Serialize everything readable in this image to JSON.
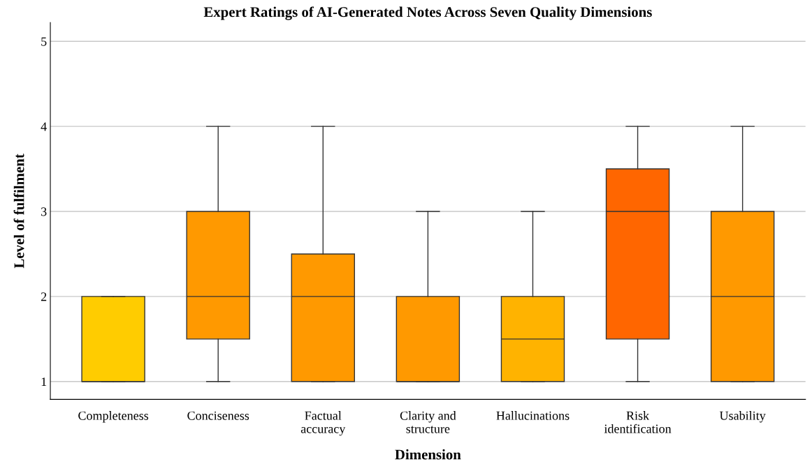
{
  "chart_data": {
    "type": "box",
    "title": "Expert Ratings of AI-Generated Notes Across Seven Quality Dimensions",
    "xlabel": "Dimension",
    "ylabel": "Level of fulfilment",
    "categories": [
      "Completeness",
      "Conciseness",
      "Factual\naccuracy",
      "Clarity and\nstructure",
      "Hallucinations",
      "Risk\nidentification",
      "Usability"
    ],
    "boxes": [
      {
        "low": 1,
        "q1": 1,
        "median": 1,
        "q3": 2,
        "high": 2
      },
      {
        "low": 1,
        "q1": 1.5,
        "median": 2,
        "q3": 3,
        "high": 4
      },
      {
        "low": 1,
        "q1": 1,
        "median": 2,
        "q3": 2.5,
        "high": 4
      },
      {
        "low": 1,
        "q1": 1,
        "median": 1,
        "q3": 2,
        "high": 3
      },
      {
        "low": 1,
        "q1": 1,
        "median": 1.5,
        "q3": 2,
        "high": 3
      },
      {
        "low": 1,
        "q1": 1.5,
        "median": 3,
        "q3": 3.5,
        "high": 4
      },
      {
        "low": 1,
        "q1": 1,
        "median": 2,
        "q3": 3,
        "high": 4
      }
    ],
    "colors": [
      "#ffcc00",
      "#ff9900",
      "#ff9900",
      "#ff9900",
      "#ffb300",
      "#ff6600",
      "#ff9900"
    ],
    "ylim": [
      0.79,
      5.22
    ],
    "yticks": [
      1,
      2,
      3,
      4,
      5
    ],
    "grid": "y"
  }
}
